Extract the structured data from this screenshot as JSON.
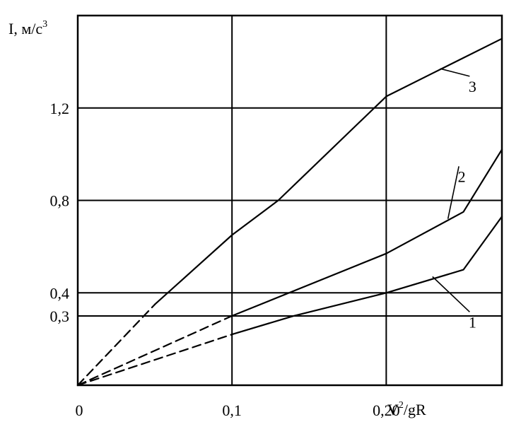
{
  "chart_data": {
    "type": "line",
    "title": "",
    "ylabel": "I, м/с",
    "ylabel_sup": "3",
    "xlabel": "V",
    "xlabel_sup": "2",
    "xlabel_tail": "/gR",
    "xlim": [
      0,
      0.275
    ],
    "ylim": [
      0,
      1.6
    ],
    "grid": true,
    "x_ticks": [
      {
        "value": 0,
        "label": "0"
      },
      {
        "value": 0.1,
        "label": "0,1"
      },
      {
        "value": 0.2,
        "label": "0,20"
      }
    ],
    "x_grid": [
      0.1,
      0.2,
      0.3
    ],
    "y_ticks": [
      {
        "value": 0.3,
        "label": "0,3"
      },
      {
        "value": 0.4,
        "label": "0,4"
      },
      {
        "value": 0.8,
        "label": "0,8"
      },
      {
        "value": 1.2,
        "label": "1,2"
      }
    ],
    "series": [
      {
        "name": "1",
        "dashed": {
          "x": [
            0,
            0.1
          ],
          "y": [
            0,
            0.22
          ]
        },
        "solid": {
          "x": [
            0.1,
            0.14,
            0.2,
            0.25,
            0.275
          ],
          "y": [
            0.22,
            0.3,
            0.4,
            0.5,
            0.73
          ]
        },
        "label_at": {
          "x": 0.255,
          "y": 0.25
        },
        "leader_to": {
          "x": 0.23,
          "y": 0.47
        }
      },
      {
        "name": "2",
        "dashed": {
          "x": [
            0,
            0.1
          ],
          "y": [
            0,
            0.3
          ]
        },
        "solid": {
          "x": [
            0.1,
            0.2,
            0.25,
            0.275
          ],
          "y": [
            0.3,
            0.57,
            0.75,
            1.02
          ]
        },
        "label_at": {
          "x": 0.248,
          "y": 0.88
        },
        "leader_to": {
          "x": 0.24,
          "y": 0.72
        }
      },
      {
        "name": "3",
        "dashed": {
          "x": [
            0,
            0.05
          ],
          "y": [
            0,
            0.35
          ]
        },
        "solid": {
          "x": [
            0.05,
            0.1,
            0.13,
            0.2,
            0.23,
            0.275
          ],
          "y": [
            0.35,
            0.65,
            0.8,
            1.25,
            1.35,
            1.5
          ]
        },
        "label_at": {
          "x": 0.255,
          "y": 1.27
        },
        "leader_to": {
          "x": 0.235,
          "y": 1.37
        }
      }
    ]
  }
}
